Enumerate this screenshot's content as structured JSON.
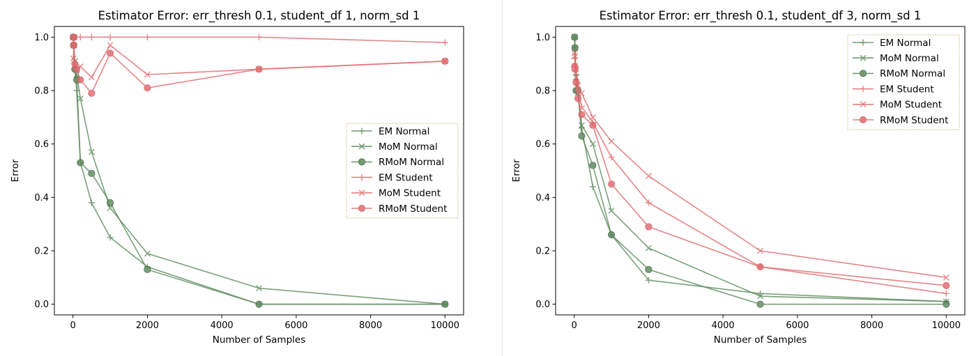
{
  "colors": {
    "normal": "#5e8a5e",
    "normal_edge": "#3d5e3d",
    "student": "#e06a6e",
    "student_edge": "#d45a5e"
  },
  "chart_data": [
    {
      "type": "line",
      "title": "Estimator Error: err_thresh 0.1, student_df 1, norm_sd 1",
      "xlabel": "Number of Samples",
      "ylabel": "Error",
      "xlim": [
        -500,
        10500
      ],
      "ylim": [
        -0.04,
        1.04
      ],
      "xticks": [
        0,
        2000,
        4000,
        6000,
        8000,
        10000
      ],
      "xtick_labels": [
        "0",
        "2000",
        "4000",
        "6000",
        "8000",
        "10000"
      ],
      "yticks": [
        0.0,
        0.2,
        0.4,
        0.6,
        0.8,
        1.0
      ],
      "ytick_labels": [
        "0.0",
        "0.2",
        "0.4",
        "0.6",
        "0.8",
        "1.0"
      ],
      "grid": false,
      "legend_position": "center-right",
      "x": [
        10,
        20,
        50,
        100,
        200,
        500,
        1000,
        2000,
        5000,
        10000
      ],
      "series": [
        {
          "name": "EM Normal",
          "marker": "plus",
          "group": "normal",
          "values": [
            1.0,
            0.96,
            0.88,
            0.8,
            0.53,
            0.38,
            0.25,
            0.14,
            0.0,
            0.0
          ]
        },
        {
          "name": "MoM Normal",
          "marker": "x",
          "group": "normal",
          "values": [
            1.0,
            0.97,
            0.91,
            0.86,
            0.77,
            0.57,
            0.36,
            0.19,
            0.06,
            0.0
          ]
        },
        {
          "name": "RMoM Normal",
          "marker": "circle",
          "group": "normal",
          "values": [
            1.0,
            0.97,
            0.88,
            0.84,
            0.53,
            0.49,
            0.38,
            0.13,
            0.0,
            0.0
          ]
        },
        {
          "name": "EM Student",
          "marker": "plus",
          "group": "student",
          "values": [
            0.99,
            1.0,
            1.0,
            1.0,
            1.0,
            1.0,
            1.0,
            1.0,
            1.0,
            0.98
          ]
        },
        {
          "name": "MoM Student",
          "marker": "x",
          "group": "student",
          "values": [
            0.92,
            0.97,
            0.89,
            0.88,
            0.89,
            0.85,
            0.97,
            0.86,
            0.88,
            0.91
          ]
        },
        {
          "name": "RMoM Student",
          "marker": "circle",
          "group": "student",
          "values": [
            1.0,
            0.97,
            0.9,
            0.88,
            0.84,
            0.79,
            0.94,
            0.81,
            0.88,
            0.91
          ]
        }
      ]
    },
    {
      "type": "line",
      "title": "Estimator Error: err_thresh 0.1, student_df 3, norm_sd 1",
      "xlabel": "Number of Samples",
      "ylabel": "Error",
      "xlim": [
        -500,
        10500
      ],
      "ylim": [
        -0.04,
        1.04
      ],
      "xticks": [
        0,
        2000,
        4000,
        6000,
        8000,
        10000
      ],
      "xtick_labels": [
        "0",
        "2000",
        "4000",
        "6000",
        "8000",
        "10000"
      ],
      "yticks": [
        0.0,
        0.2,
        0.4,
        0.6,
        0.8,
        1.0
      ],
      "ytick_labels": [
        "0.0",
        "0.2",
        "0.4",
        "0.6",
        "0.8",
        "1.0"
      ],
      "grid": false,
      "legend_position": "upper-right",
      "x": [
        10,
        20,
        50,
        100,
        200,
        500,
        1000,
        2000,
        5000,
        10000
      ],
      "series": [
        {
          "name": "EM Normal",
          "marker": "plus",
          "group": "normal",
          "values": [
            1.0,
            0.96,
            0.86,
            0.8,
            0.66,
            0.44,
            0.26,
            0.09,
            0.04,
            0.01
          ]
        },
        {
          "name": "MoM Normal",
          "marker": "x",
          "group": "normal",
          "values": [
            1.0,
            0.96,
            0.85,
            0.79,
            0.67,
            0.6,
            0.35,
            0.21,
            0.03,
            0.01
          ]
        },
        {
          "name": "RMoM Normal",
          "marker": "circle",
          "group": "normal",
          "values": [
            1.0,
            0.96,
            0.8,
            0.8,
            0.63,
            0.52,
            0.26,
            0.13,
            0.0,
            0.0
          ]
        },
        {
          "name": "EM Student",
          "marker": "plus",
          "group": "student",
          "values": [
            0.92,
            0.9,
            0.84,
            0.8,
            0.74,
            0.68,
            0.55,
            0.38,
            0.14,
            0.04
          ]
        },
        {
          "name": "MoM Student",
          "marker": "x",
          "group": "student",
          "values": [
            0.94,
            0.93,
            0.88,
            0.82,
            0.79,
            0.7,
            0.61,
            0.48,
            0.2,
            0.1
          ]
        },
        {
          "name": "RMoM Student",
          "marker": "circle",
          "group": "student",
          "values": [
            0.89,
            0.88,
            0.83,
            0.77,
            0.71,
            0.67,
            0.45,
            0.29,
            0.14,
            0.07
          ]
        }
      ]
    }
  ]
}
